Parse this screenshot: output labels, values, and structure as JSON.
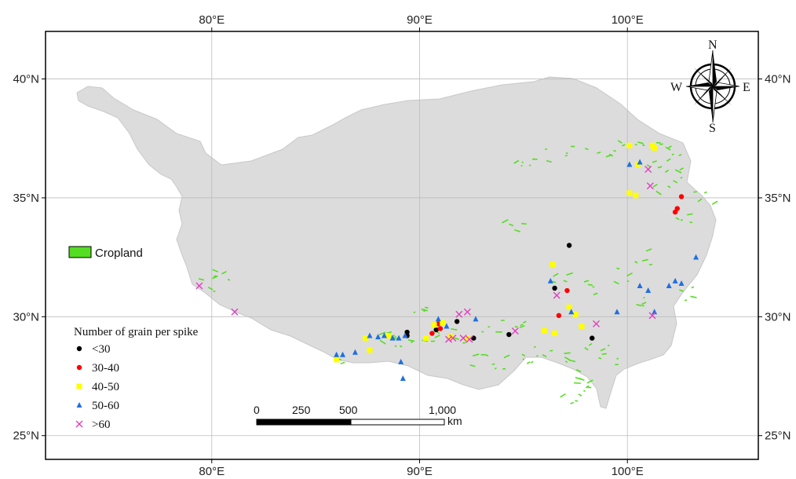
{
  "map": {
    "lon_ticks": [
      {
        "value": 80,
        "label": "80°E"
      },
      {
        "value": 90,
        "label": "90°E"
      },
      {
        "value": 100,
        "label": "100°E"
      }
    ],
    "lat_ticks": [
      {
        "value": 40,
        "label": "40°N"
      },
      {
        "value": 35,
        "label": "35°N"
      },
      {
        "value": 30,
        "label": "30°N"
      },
      {
        "value": 25,
        "label": "25°N"
      }
    ],
    "lon_range": [
      72,
      106.3
    ],
    "lat_range": [
      24,
      42
    ],
    "colors": {
      "plateau": "#dcdcdc",
      "cropland": "#55dd22",
      "grid": "#bdbdbd",
      "frame": "#000000"
    }
  },
  "cropland_legend": {
    "label": "Cropland"
  },
  "legend": {
    "title": "Number of grain per spike",
    "items": [
      {
        "label": "<30",
        "color": "#000000",
        "marker": "circle"
      },
      {
        "label": "30-40",
        "color": "#ff0000",
        "marker": "circle"
      },
      {
        "label": "40-50",
        "color": "#ffff00",
        "marker": "square"
      },
      {
        "label": "50-60",
        "color": "#1f6fe0",
        "marker": "triangle"
      },
      {
        "label": ">60",
        "color": "#e040c0",
        "marker": "x"
      }
    ]
  },
  "scale_bar": {
    "labels": [
      "0",
      "250",
      "500",
      "1,000"
    ],
    "unit": "km"
  },
  "compass": {
    "n": "N",
    "s": "S",
    "e": "E",
    "w": "W"
  },
  "chart_data": {
    "type": "scatter",
    "title": "",
    "xlabel": "",
    "ylabel": "",
    "xlim": [
      72,
      106.3
    ],
    "ylim": [
      24,
      42
    ],
    "series": [
      {
        "name": "<30",
        "points": [
          [
            89.4,
            29.35
          ],
          [
            89.4,
            29.2
          ],
          [
            90.8,
            29.45
          ],
          [
            91.8,
            29.8
          ],
          [
            92.6,
            29.1
          ],
          [
            94.3,
            29.25
          ],
          [
            96.5,
            31.2
          ],
          [
            97.2,
            33.0
          ],
          [
            98.3,
            29.1
          ]
        ]
      },
      {
        "name": "30-40",
        "points": [
          [
            90.6,
            29.3
          ],
          [
            90.9,
            29.7
          ],
          [
            91.0,
            29.5
          ],
          [
            96.7,
            30.05
          ],
          [
            97.1,
            31.1
          ],
          [
            102.3,
            34.4
          ],
          [
            102.4,
            34.55
          ],
          [
            102.6,
            35.05
          ]
        ]
      },
      {
        "name": "40-50",
        "points": [
          [
            86.0,
            28.2
          ],
          [
            87.4,
            29.1
          ],
          [
            87.6,
            28.6
          ],
          [
            88.5,
            29.2
          ],
          [
            90.3,
            29.1
          ],
          [
            90.7,
            29.65
          ],
          [
            91.1,
            29.75
          ],
          [
            91.5,
            29.15
          ],
          [
            92.3,
            29.1
          ],
          [
            96.0,
            29.4
          ],
          [
            96.5,
            29.3
          ],
          [
            96.4,
            32.2
          ],
          [
            97.2,
            30.4
          ],
          [
            97.5,
            30.1
          ],
          [
            97.8,
            29.6
          ],
          [
            100.1,
            37.2
          ],
          [
            100.1,
            35.2
          ],
          [
            100.4,
            35.1
          ],
          [
            101.2,
            37.2
          ],
          [
            101.3,
            37.1
          ],
          [
            100.5,
            36.4
          ]
        ]
      },
      {
        "name": "50-60",
        "points": [
          [
            86.0,
            28.4
          ],
          [
            86.3,
            28.4
          ],
          [
            86.9,
            28.5
          ],
          [
            87.6,
            29.2
          ],
          [
            88.0,
            29.15
          ],
          [
            88.3,
            29.2
          ],
          [
            88.7,
            29.1
          ],
          [
            89.0,
            29.1
          ],
          [
            89.3,
            29.2
          ],
          [
            89.1,
            28.1
          ],
          [
            89.2,
            27.4
          ],
          [
            90.9,
            29.9
          ],
          [
            91.3,
            29.6
          ],
          [
            92.7,
            29.9
          ],
          [
            96.3,
            31.5
          ],
          [
            97.3,
            30.2
          ],
          [
            99.5,
            30.2
          ],
          [
            100.1,
            36.4
          ],
          [
            100.6,
            36.5
          ],
          [
            100.6,
            31.3
          ],
          [
            101.0,
            31.1
          ],
          [
            101.3,
            30.2
          ],
          [
            102.0,
            31.3
          ],
          [
            102.3,
            31.5
          ],
          [
            102.6,
            31.4
          ],
          [
            103.3,
            32.5
          ]
        ]
      },
      {
        "name": ">60",
        "points": [
          [
            79.4,
            31.3
          ],
          [
            81.1,
            30.2
          ],
          [
            91.4,
            29.05
          ],
          [
            91.6,
            29.1
          ],
          [
            91.9,
            30.1
          ],
          [
            92.1,
            29.1
          ],
          [
            92.3,
            30.2
          ],
          [
            92.4,
            29.05
          ],
          [
            94.6,
            29.4
          ],
          [
            96.6,
            30.9
          ],
          [
            98.5,
            29.7
          ],
          [
            101.0,
            36.2
          ],
          [
            101.1,
            35.5
          ],
          [
            101.2,
            30.05
          ]
        ]
      }
    ]
  }
}
